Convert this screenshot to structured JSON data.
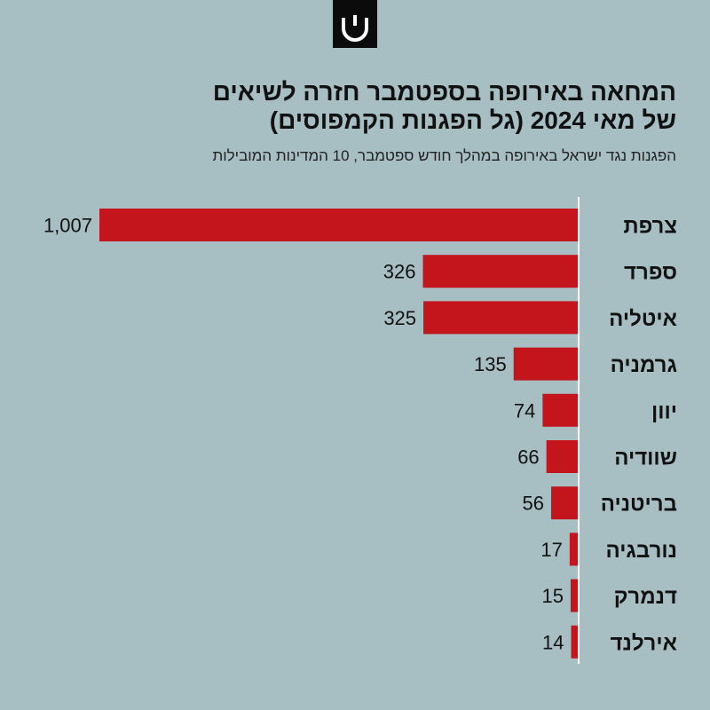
{
  "header": {
    "title_line1": "המחאה באירופה בספטמבר חזרה לשיאים",
    "title_line2": "של מאי 2024 (גל הפגנות הקמפוסים)",
    "subtitle": "הפגנות נגד ישראל באירופה במהלך חודש ספטמבר, 10 המדינות המובילות"
  },
  "colors": {
    "bar": "#c4151c",
    "background": "#a7bec3",
    "axis": "#ffffff"
  },
  "chart_data": {
    "type": "bar",
    "orientation": "horizontal",
    "title": "המחאה באירופה בספטמבר חזרה לשיאים של מאי 2024 (גל הפגנות הקמפוסים)",
    "subtitle": "הפגנות נגד ישראל באירופה במהלך חודש ספטמבר, 10 המדינות המובילות",
    "categories": [
      "צרפת",
      "ספרד",
      "איטליה",
      "גרמניה",
      "יוון",
      "שוודיה",
      "בריטניה",
      "נורבגיה",
      "דנמרק",
      "אירלנד"
    ],
    "values": [
      1007,
      326,
      325,
      135,
      74,
      66,
      56,
      17,
      15,
      14
    ],
    "value_labels": [
      "1,007",
      "326",
      "325",
      "135",
      "74",
      "66",
      "56",
      "17",
      "15",
      "14"
    ],
    "xlim": [
      0,
      1007
    ],
    "xlabel": "",
    "ylabel": ""
  }
}
